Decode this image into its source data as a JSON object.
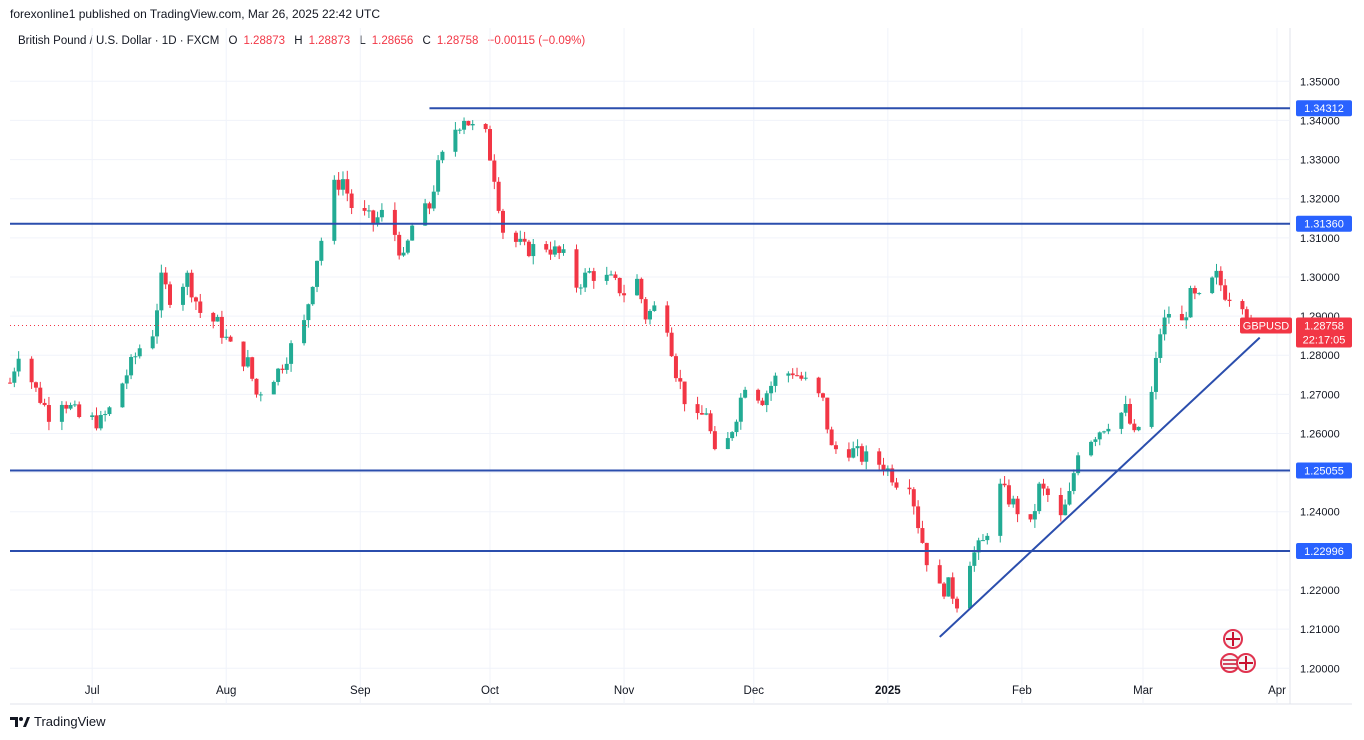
{
  "header": {
    "publisher_line": "forexonline1 published on TradingView.com, Mar 26, 2025 22:42 UTC"
  },
  "legend": {
    "symbol": "British Pound / U.S. Dollar · 1D · FXCM",
    "o_label": "O",
    "o_value": "1.28873",
    "h_label": "H",
    "h_value": "1.28873",
    "l_label": "L",
    "l_value": "1.28656",
    "c_label": "C",
    "c_value": "1.28758",
    "change": "−0.00115 (−0.09%)"
  },
  "footer": {
    "brand": "TradingView",
    "logo": "tv-logo-icon"
  },
  "colors": {
    "up": "#22ab94",
    "down": "#f23645",
    "level": "#2b4ead",
    "tag": "#2962ff",
    "price_tag": "#f23645"
  },
  "chart_data": {
    "type": "candlestick",
    "symbol": "GBPUSD",
    "ylim": [
      1.197,
      1.358
    ],
    "y_ticks": [
      "1.35000",
      "1.34000",
      "1.33000",
      "1.32000",
      "1.31000",
      "1.30000",
      "1.29000",
      "1.28000",
      "1.27000",
      "1.26000",
      "1.25000",
      "1.24000",
      "1.23000",
      "1.22000",
      "1.21000",
      "1.20000"
    ],
    "x_range": [
      "2024-06-12",
      "2025-04-04"
    ],
    "x_ticks": [
      {
        "label": "Jul",
        "date": "2024-07-01",
        "bold": false
      },
      {
        "label": "Aug",
        "date": "2024-08-01",
        "bold": false
      },
      {
        "label": "Sep",
        "date": "2024-09-01",
        "bold": false
      },
      {
        "label": "Oct",
        "date": "2024-10-01",
        "bold": false
      },
      {
        "label": "Nov",
        "date": "2024-11-01",
        "bold": false
      },
      {
        "label": "Dec",
        "date": "2024-12-01",
        "bold": false
      },
      {
        "label": "2025",
        "date": "2025-01-01",
        "bold": true
      },
      {
        "label": "Feb",
        "date": "2025-02-01",
        "bold": false
      },
      {
        "label": "Mar",
        "date": "2025-03-01",
        "bold": false
      },
      {
        "label": "Apr",
        "date": "2025-04-01",
        "bold": false
      }
    ],
    "levels": [
      {
        "value": 1.34312,
        "label": "1.34312",
        "start": "2024-09-17"
      },
      {
        "value": 1.3136,
        "label": "1.31360",
        "start": "2024-06-12"
      },
      {
        "value": 1.25055,
        "label": "1.25055",
        "start": "2024-06-12"
      },
      {
        "value": 1.22996,
        "label": "1.22996",
        "start": "2024-06-12"
      }
    ],
    "trendline": [
      [
        "2025-01-13",
        1.208
      ],
      [
        "2025-03-28",
        1.2845
      ]
    ],
    "last_price": {
      "symbol": "GBPUSD",
      "value": 1.28758,
      "label": "1.28758",
      "countdown": "22:17:05"
    },
    "anchors": [
      [
        "2024-06-12",
        1.273
      ],
      [
        "2024-06-14",
        1.281
      ],
      [
        "2024-06-18",
        1.271
      ],
      [
        "2024-06-21",
        1.265
      ],
      [
        "2024-06-24",
        1.269
      ],
      [
        "2024-06-28",
        1.264
      ],
      [
        "2024-07-03",
        1.263
      ],
      [
        "2024-07-05",
        1.266
      ],
      [
        "2024-07-08",
        1.273
      ],
      [
        "2024-07-12",
        1.282
      ],
      [
        "2024-07-15",
        1.286
      ],
      [
        "2024-07-17",
        1.299
      ],
      [
        "2024-07-19",
        1.295
      ],
      [
        "2024-07-23",
        1.3
      ],
      [
        "2024-07-26",
        1.291
      ],
      [
        "2024-07-30",
        1.288
      ],
      [
        "2024-08-02",
        1.282
      ],
      [
        "2024-08-06",
        1.278
      ],
      [
        "2024-08-08",
        1.27
      ],
      [
        "2024-08-13",
        1.276
      ],
      [
        "2024-08-15",
        1.28
      ],
      [
        "2024-08-19",
        1.288
      ],
      [
        "2024-08-22",
        1.305
      ],
      [
        "2024-08-26",
        1.323
      ],
      [
        "2024-08-28",
        1.325
      ],
      [
        "2024-08-30",
        1.318
      ],
      [
        "2024-09-04",
        1.314
      ],
      [
        "2024-09-06",
        1.316
      ],
      [
        "2024-09-09",
        1.311
      ],
      [
        "2024-09-11",
        1.304
      ],
      [
        "2024-09-13",
        1.313
      ],
      [
        "2024-09-17",
        1.318
      ],
      [
        "2024-09-19",
        1.328
      ],
      [
        "2024-09-23",
        1.338
      ],
      [
        "2024-09-25",
        1.341
      ],
      [
        "2024-09-27",
        1.338
      ],
      [
        "2024-09-30",
        1.336
      ],
      [
        "2024-10-02",
        1.326
      ],
      [
        "2024-10-04",
        1.312
      ],
      [
        "2024-10-07",
        1.309
      ],
      [
        "2024-10-09",
        1.307
      ],
      [
        "2024-10-14",
        1.308
      ],
      [
        "2024-10-18",
        1.305
      ],
      [
        "2024-10-21",
        1.298
      ],
      [
        "2024-10-24",
        1.301
      ],
      [
        "2024-10-29",
        1.299
      ],
      [
        "2024-11-01",
        1.296
      ],
      [
        "2024-11-04",
        1.299
      ],
      [
        "2024-11-06",
        1.29
      ],
      [
        "2024-11-08",
        1.292
      ],
      [
        "2024-11-11",
        1.288
      ],
      [
        "2024-11-13",
        1.276
      ],
      [
        "2024-11-15",
        1.269
      ],
      [
        "2024-11-18",
        1.263
      ],
      [
        "2024-11-20",
        1.266
      ],
      [
        "2024-11-22",
        1.254
      ],
      [
        "2024-11-25",
        1.258
      ],
      [
        "2024-11-27",
        1.265
      ],
      [
        "2024-11-29",
        1.273
      ],
      [
        "2024-12-03",
        1.269
      ],
      [
        "2024-12-06",
        1.274
      ],
      [
        "2024-12-10",
        1.276
      ],
      [
        "2024-12-13",
        1.273
      ],
      [
        "2024-12-17",
        1.268
      ],
      [
        "2024-12-19",
        1.256
      ],
      [
        "2024-12-23",
        1.256
      ],
      [
        "2024-12-26",
        1.254
      ],
      [
        "2024-12-31",
        1.252
      ],
      [
        "2025-01-03",
        1.248
      ],
      [
        "2025-01-06",
        1.248
      ],
      [
        "2025-01-08",
        1.237
      ],
      [
        "2025-01-10",
        1.228
      ],
      [
        "2025-01-13",
        1.22
      ],
      [
        "2025-01-15",
        1.221
      ],
      [
        "2025-01-17",
        1.217
      ],
      [
        "2025-01-20",
        1.228
      ],
      [
        "2025-01-23",
        1.232
      ],
      [
        "2025-01-27",
        1.246
      ],
      [
        "2025-01-30",
        1.242
      ],
      [
        "2025-02-03",
        1.236
      ],
      [
        "2025-02-05",
        1.246
      ],
      [
        "2025-02-07",
        1.244
      ],
      [
        "2025-02-10",
        1.238
      ],
      [
        "2025-02-12",
        1.244
      ],
      [
        "2025-02-14",
        1.256
      ],
      [
        "2025-02-18",
        1.26
      ],
      [
        "2025-02-21",
        1.263
      ],
      [
        "2025-02-25",
        1.266
      ],
      [
        "2025-02-27",
        1.259
      ],
      [
        "2025-03-03",
        1.27
      ],
      [
        "2025-03-05",
        1.286
      ],
      [
        "2025-03-07",
        1.291
      ],
      [
        "2025-03-10",
        1.288
      ],
      [
        "2025-03-12",
        1.295
      ],
      [
        "2025-03-14",
        1.294
      ],
      [
        "2025-03-18",
        1.3
      ],
      [
        "2025-03-20",
        1.296
      ],
      [
        "2025-03-24",
        1.294
      ],
      [
        "2025-03-26",
        1.2876
      ]
    ]
  }
}
